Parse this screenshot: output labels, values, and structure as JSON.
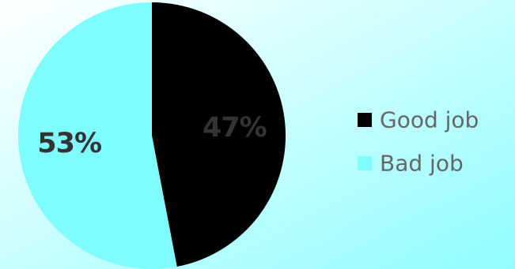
{
  "chart_data": {
    "type": "pie",
    "title": "",
    "slices": [
      {
        "label": "Good job",
        "value": 47,
        "display": "47%",
        "color": "#000000"
      },
      {
        "label": "Bad job",
        "value": 53,
        "display": "53%",
        "color": "#7ffcff"
      }
    ],
    "legend": {
      "position": "right",
      "items": [
        {
          "label": "Good job",
          "color": "#000000"
        },
        {
          "label": "Bad job",
          "color": "#7ffcff"
        }
      ]
    },
    "background": {
      "gradient_from": "#ffffff",
      "gradient_to": "#90fcff"
    }
  }
}
